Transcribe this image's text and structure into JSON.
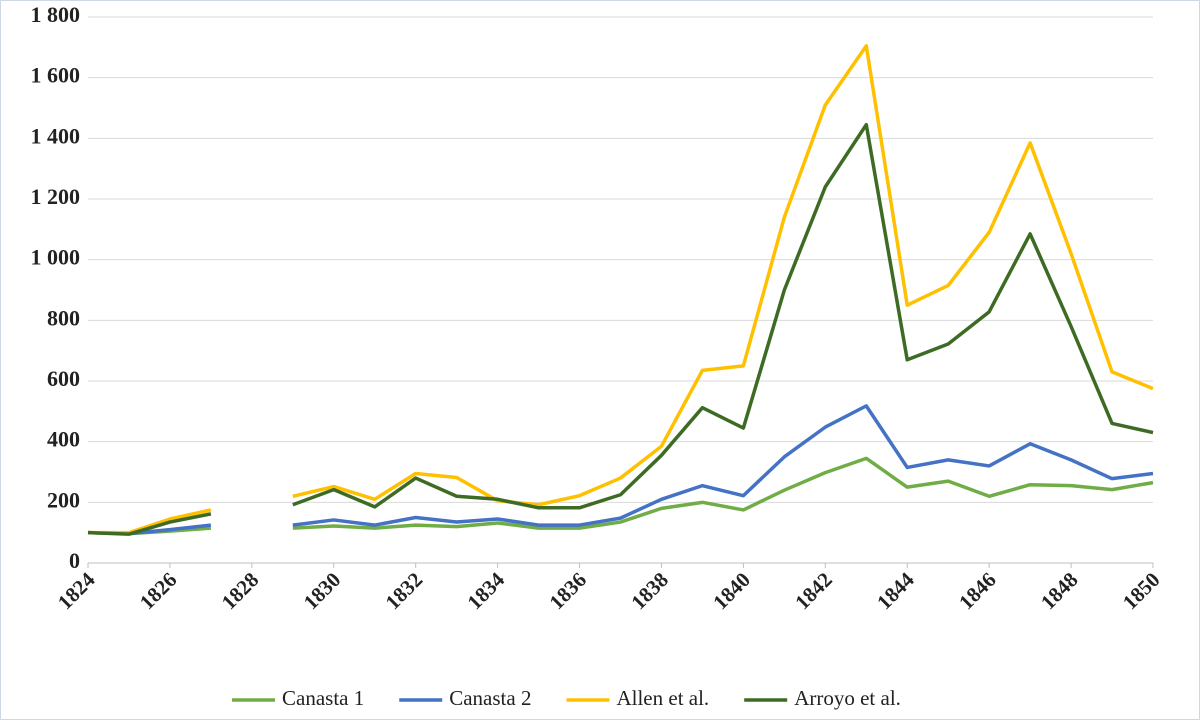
{
  "chart_data": {
    "type": "line",
    "x": [
      1824,
      1825,
      1826,
      1827,
      1828,
      1829,
      1830,
      1831,
      1832,
      1833,
      1834,
      1835,
      1836,
      1837,
      1838,
      1839,
      1840,
      1841,
      1842,
      1843,
      1844,
      1845,
      1846,
      1847,
      1848,
      1849,
      1850
    ],
    "series": [
      {
        "name": "Canasta 1",
        "color": "#70ad47",
        "values": [
          100,
          97,
          105,
          115,
          null,
          115,
          122,
          115,
          125,
          120,
          132,
          115,
          115,
          135,
          180,
          200,
          175,
          240,
          298,
          345,
          250,
          270,
          220,
          258,
          255,
          242,
          265
        ]
      },
      {
        "name": "Canasta 2",
        "color": "#4472c4",
        "values": [
          100,
          97,
          110,
          125,
          null,
          125,
          142,
          125,
          150,
          135,
          145,
          125,
          125,
          148,
          210,
          255,
          222,
          350,
          448,
          518,
          315,
          340,
          320,
          393,
          340,
          278,
          295
        ]
      },
      {
        "name": "Allen et al.",
        "color": "#ffc000",
        "values": [
          100,
          100,
          145,
          175,
          null,
          220,
          252,
          210,
          295,
          282,
          205,
          192,
          222,
          280,
          385,
          635,
          650,
          1140,
          1510,
          1705,
          850,
          915,
          1090,
          1385,
          1020,
          630,
          575
        ]
      },
      {
        "name": "Arroyo et al.",
        "color": "#3e6b24",
        "values": [
          100,
          95,
          135,
          162,
          null,
          192,
          242,
          185,
          280,
          220,
          210,
          182,
          182,
          225,
          355,
          512,
          445,
          900,
          1240,
          1445,
          670,
          722,
          828,
          1085,
          780,
          460,
          430
        ]
      }
    ],
    "xlim": [
      1824,
      1850
    ],
    "xticks": [
      1824,
      1826,
      1828,
      1830,
      1832,
      1834,
      1836,
      1838,
      1840,
      1842,
      1844,
      1846,
      1848,
      1850
    ],
    "ylim": [
      0,
      1800
    ],
    "yticks": [
      0,
      200,
      400,
      600,
      800,
      {
        "value": 1000,
        "label": "1 000"
      },
      {
        "value": 1200,
        "label": "1 200"
      },
      {
        "value": 1400,
        "label": "1 400"
      },
      {
        "value": 1600,
        "label": "1 600"
      },
      {
        "value": 1800,
        "label": "1 800"
      }
    ],
    "grid": true,
    "legend": "bottom"
  }
}
